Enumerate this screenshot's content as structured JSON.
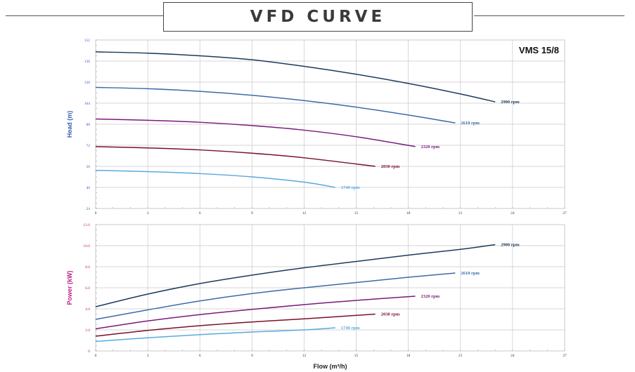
{
  "page_title": "VFD CURVE",
  "chart_data": [
    {
      "type": "line",
      "title": "",
      "model_label": "VMS 15/8",
      "xlabel": "",
      "ylabel": "Head (m)",
      "ylabel_color": "#3a5fb0",
      "tick_color": "#3a5fb0",
      "xlim": [
        0,
        27
      ],
      "ylim": [
        24,
        152
      ],
      "x_ticks": [
        "0",
        "3",
        "6",
        "9",
        "12",
        "15",
        "18",
        "21",
        "24",
        "27"
      ],
      "y_ticks": [
        "24",
        "40",
        "56",
        "72",
        "88",
        "104",
        "120",
        "136",
        "152"
      ],
      "grid": true,
      "series": [
        {
          "name": "2900 rpm",
          "color": "#1b3a5c",
          "x": [
            0,
            3,
            6,
            9,
            12,
            15,
            18,
            21,
            23
          ],
          "y": [
            143,
            142,
            140,
            137,
            132,
            126,
            119,
            111,
            105
          ]
        },
        {
          "name": "2610 rpm",
          "color": "#3d6aa8",
          "x": [
            0,
            3,
            6,
            9,
            12,
            15,
            18,
            20.7
          ],
          "y": [
            116,
            115,
            113,
            110,
            106,
            101,
            95,
            89
          ]
        },
        {
          "name": "2320 rpm",
          "color": "#7a1a7a",
          "x": [
            0,
            3,
            6,
            9,
            12,
            15,
            18.4
          ],
          "y": [
            92,
            91,
            89.5,
            87,
            83.5,
            78.5,
            71
          ]
        },
        {
          "name": "2030 rpm",
          "color": "#7a1028",
          "x": [
            0,
            3,
            6,
            9,
            12,
            16.1
          ],
          "y": [
            71,
            70,
            68.5,
            66,
            62.5,
            56
          ]
        },
        {
          "name": "1740 rpm",
          "color": "#5aa8e0",
          "x": [
            0,
            3,
            6,
            9,
            12,
            13.8
          ],
          "y": [
            53,
            52,
            50.5,
            48,
            44,
            40
          ]
        }
      ]
    },
    {
      "type": "line",
      "title": "",
      "xlabel": "Flow (m³/h)",
      "ylabel": "Power (kW)",
      "ylabel_color": "#c0208a",
      "tick_color": "#c0208a",
      "xlim": [
        0,
        27
      ],
      "ylim": [
        0,
        12.0
      ],
      "x_ticks": [
        "0",
        "3",
        "6",
        "9",
        "12",
        "15",
        "18",
        "21",
        "24",
        "27"
      ],
      "y_ticks": [
        "0",
        "2.0",
        "4.0",
        "6.0",
        "8.0",
        "10.0",
        "12.0"
      ],
      "grid": true,
      "series": [
        {
          "name": "2900 rpm",
          "color": "#1b3a5c",
          "x": [
            0,
            3,
            6,
            9,
            12,
            15,
            18,
            21,
            23
          ],
          "y": [
            4.2,
            5.4,
            6.4,
            7.2,
            7.9,
            8.5,
            9.1,
            9.65,
            10.1
          ]
        },
        {
          "name": "2610 rpm",
          "color": "#3d6aa8",
          "x": [
            0,
            3,
            6,
            9,
            12,
            15,
            18,
            20.7
          ],
          "y": [
            3.0,
            3.9,
            4.75,
            5.45,
            6.0,
            6.5,
            7.0,
            7.4
          ]
        },
        {
          "name": "2320 rpm",
          "color": "#7a1a7a",
          "x": [
            0,
            3,
            6,
            9,
            12,
            15,
            18.4
          ],
          "y": [
            2.1,
            2.85,
            3.45,
            3.95,
            4.4,
            4.8,
            5.2
          ]
        },
        {
          "name": "2030 rpm",
          "color": "#7a1028",
          "x": [
            0,
            3,
            6,
            9,
            12,
            16.1
          ],
          "y": [
            1.4,
            1.95,
            2.4,
            2.75,
            3.05,
            3.5
          ]
        },
        {
          "name": "1740 rpm",
          "color": "#5aa8e0",
          "x": [
            0,
            3,
            6,
            9,
            12,
            13.8
          ],
          "y": [
            0.9,
            1.25,
            1.55,
            1.8,
            2.0,
            2.2
          ]
        }
      ]
    }
  ]
}
